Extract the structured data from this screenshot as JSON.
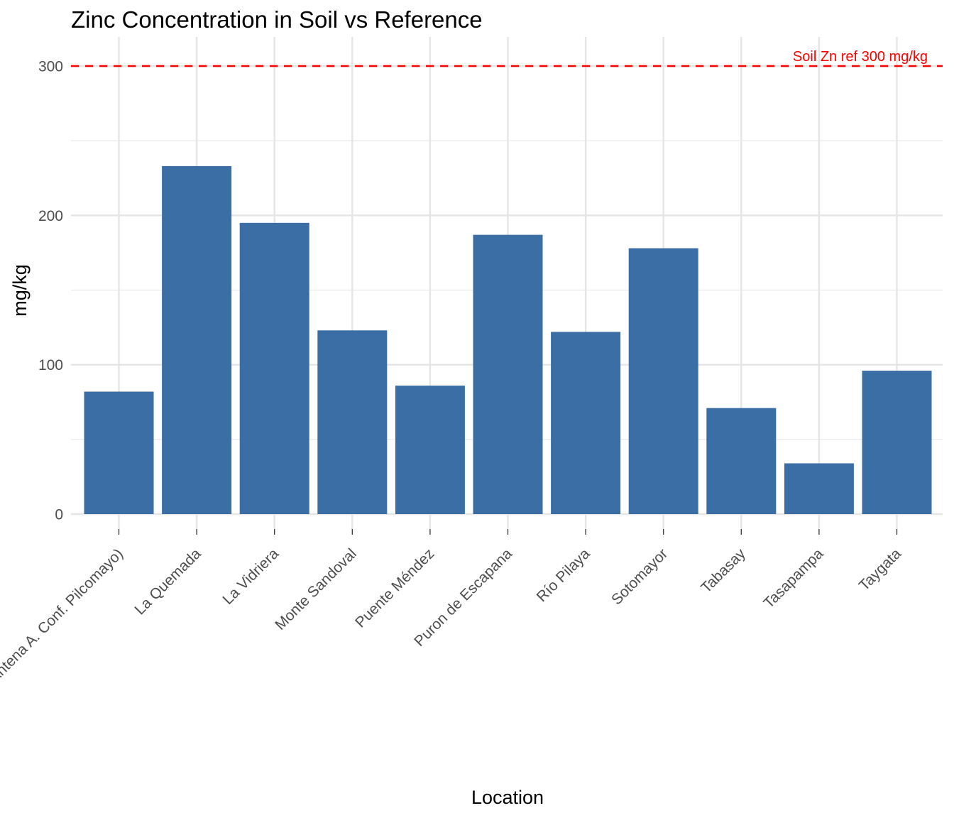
{
  "chart_data": {
    "type": "bar",
    "title": "Zinc Concentration in Soil vs Reference",
    "xlabel": "Location",
    "ylabel": "mg/kg",
    "categories": [
      "Cañón del Pilaya (Antena A. Conf. Pilcomayo)",
      "La Quemada",
      "La Vidriera",
      "Monte Sandoval",
      "Puente Méndez",
      "Puron de Escapana",
      "Río Pilaya",
      "Sotomayor",
      "Tabasay",
      "Tasapampa",
      "Taygata"
    ],
    "values": [
      82,
      233,
      195,
      123,
      86,
      187,
      122,
      178,
      71,
      34,
      96
    ],
    "ylim": [
      0,
      300
    ],
    "yticks": [
      0,
      100,
      200,
      300
    ],
    "grid": true,
    "bar_color": "#3a6ea5",
    "reference_line": {
      "value": 300,
      "label": "Soil Zn ref 300 mg/kg",
      "color": "#ff0000",
      "style": "dashed"
    }
  }
}
